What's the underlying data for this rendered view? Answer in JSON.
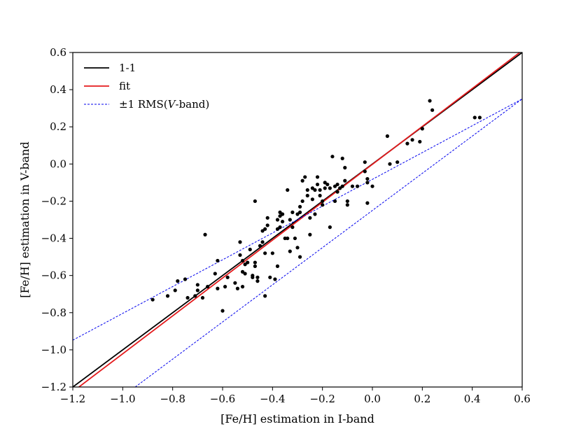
{
  "chart_data": {
    "type": "scatter",
    "title": "",
    "xlabel": "[Fe/H] estimation in I-band",
    "ylabel": "[Fe/H] estimation in V-band",
    "xlim": [
      -1.2,
      0.6
    ],
    "ylim": [
      -1.2,
      0.6
    ],
    "xticks": [
      -1.2,
      -1.0,
      -0.8,
      -0.6,
      -0.4,
      -0.2,
      0.0,
      0.2,
      0.4,
      0.6
    ],
    "yticks": [
      -1.2,
      -1.0,
      -0.8,
      -0.6,
      -0.4,
      -0.2,
      0.0,
      0.2,
      0.4,
      0.6
    ],
    "xtick_labels": [
      "−1.2",
      "−1.0",
      "−0.8",
      "−0.6",
      "−0.4",
      "−0.2",
      "0.0",
      "0.2",
      "0.4",
      "0.6"
    ],
    "ytick_labels": [
      "−1.2",
      "−1.0",
      "−0.8",
      "−0.6",
      "−0.4",
      "−0.2",
      "0.0",
      "0.2",
      "0.4",
      "0.6"
    ],
    "grid": false,
    "legend_position": "top-left",
    "legend": {
      "one_to_one": "1-1",
      "fit": "fit",
      "rms_prefix": "±1 RMS(",
      "rms_italic": "V",
      "rms_suffix": "-band)"
    },
    "lines": [
      {
        "name": "1-1",
        "color": "#000000",
        "style": "solid",
        "x": [
          -1.2,
          0.6
        ],
        "y": [
          -1.2,
          0.6
        ]
      },
      {
        "name": "fit",
        "color": "#e41a1c",
        "style": "solid",
        "x": [
          -1.2,
          0.6
        ],
        "y": [
          -1.225,
          0.61
        ]
      },
      {
        "name": "rms_upper",
        "color": "#0000ee",
        "style": "dashed",
        "x": [
          -1.2,
          0.6
        ],
        "y": [
          -0.948,
          0.35
        ]
      }
    ],
    "rms_band": {
      "name": "rms_lower",
      "color": "#0000ee",
      "style": "dashed",
      "x": [
        -0.95,
        0.6
      ],
      "y": [
        -1.2,
        0.35
      ]
    },
    "points": {
      "color": "#000000",
      "x": [
        -0.88,
        -0.82,
        -0.79,
        -0.78,
        -0.75,
        -0.74,
        -0.71,
        -0.7,
        -0.7,
        -0.68,
        -0.67,
        -0.66,
        -0.63,
        -0.62,
        -0.62,
        -0.6,
        -0.59,
        -0.58,
        -0.55,
        -0.54,
        -0.53,
        -0.53,
        -0.52,
        -0.52,
        -0.52,
        -0.51,
        -0.51,
        -0.5,
        -0.49,
        -0.48,
        -0.48,
        -0.47,
        -0.47,
        -0.47,
        -0.46,
        -0.46,
        -0.45,
        -0.44,
        -0.44,
        -0.43,
        -0.43,
        -0.43,
        -0.42,
        -0.42,
        -0.41,
        -0.4,
        -0.39,
        -0.38,
        -0.38,
        -0.38,
        -0.37,
        -0.37,
        -0.37,
        -0.36,
        -0.36,
        -0.35,
        -0.34,
        -0.34,
        -0.33,
        -0.33,
        -0.32,
        -0.32,
        -0.31,
        -0.3,
        -0.3,
        -0.29,
        -0.29,
        -0.29,
        -0.28,
        -0.28,
        -0.27,
        -0.26,
        -0.26,
        -0.25,
        -0.25,
        -0.24,
        -0.24,
        -0.23,
        -0.23,
        -0.22,
        -0.22,
        -0.21,
        -0.21,
        -0.2,
        -0.2,
        -0.19,
        -0.19,
        -0.18,
        -0.17,
        -0.17,
        -0.16,
        -0.15,
        -0.15,
        -0.14,
        -0.14,
        -0.13,
        -0.12,
        -0.12,
        -0.11,
        -0.11,
        -0.1,
        -0.1,
        -0.08,
        -0.06,
        -0.03,
        -0.03,
        -0.02,
        -0.02,
        -0.02,
        0.0,
        0.06,
        0.07,
        0.1,
        0.14,
        0.16,
        0.19,
        0.2,
        0.23,
        0.24,
        0.41,
        0.43
      ],
      "y": [
        -0.73,
        -0.71,
        -0.68,
        -0.63,
        -0.62,
        -0.72,
        -0.71,
        -0.65,
        -0.68,
        -0.72,
        -0.38,
        -0.66,
        -0.59,
        -0.52,
        -0.67,
        -0.79,
        -0.66,
        -0.61,
        -0.64,
        -0.67,
        -0.42,
        -0.49,
        -0.52,
        -0.58,
        -0.66,
        -0.59,
        -0.54,
        -0.53,
        -0.46,
        -0.6,
        -0.61,
        -0.2,
        -0.53,
        -0.55,
        -0.61,
        -0.63,
        -0.44,
        -0.36,
        -0.42,
        -0.35,
        -0.71,
        -0.48,
        -0.29,
        -0.33,
        -0.61,
        -0.48,
        -0.62,
        -0.3,
        -0.35,
        -0.55,
        -0.26,
        -0.28,
        -0.34,
        -0.27,
        -0.31,
        -0.4,
        -0.14,
        -0.4,
        -0.3,
        -0.47,
        -0.26,
        -0.34,
        -0.4,
        -0.27,
        -0.45,
        -0.23,
        -0.26,
        -0.5,
        -0.2,
        -0.09,
        -0.07,
        -0.14,
        -0.17,
        -0.29,
        -0.38,
        -0.19,
        -0.13,
        -0.14,
        -0.27,
        -0.11,
        -0.07,
        -0.14,
        -0.17,
        -0.2,
        -0.22,
        -0.1,
        -0.13,
        -0.11,
        -0.13,
        -0.34,
        0.04,
        -0.2,
        -0.12,
        -0.11,
        -0.15,
        -0.13,
        -0.12,
        0.03,
        -0.02,
        -0.09,
        -0.22,
        -0.2,
        -0.12,
        -0.12,
        -0.04,
        0.01,
        -0.1,
        -0.08,
        -0.21,
        -0.12,
        0.15,
        0.0,
        0.01,
        0.11,
        0.13,
        0.12,
        0.19,
        0.34,
        0.29,
        0.25,
        0.25
      ]
    }
  }
}
